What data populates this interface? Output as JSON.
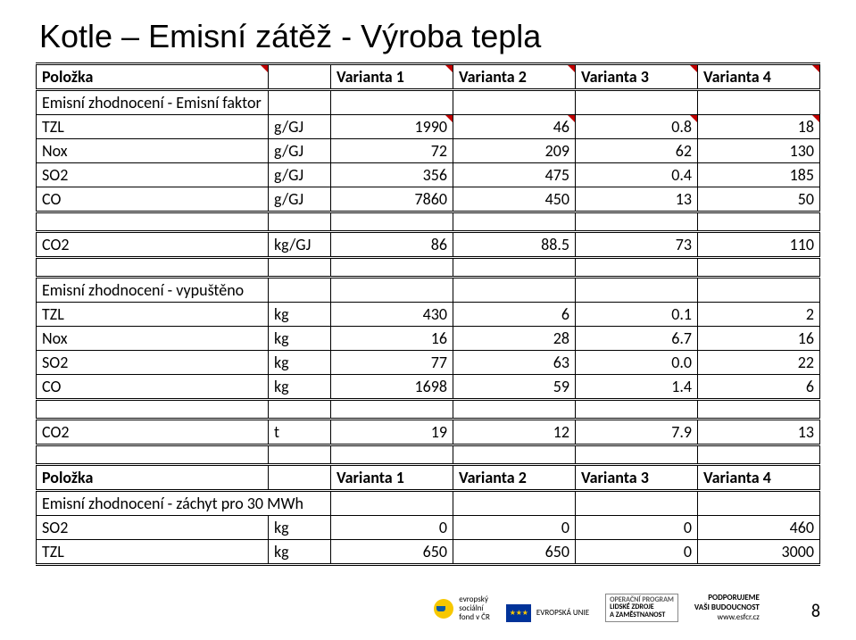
{
  "title": "Kotle – Emisní zátěž - Výroba tepla",
  "header": {
    "polozka": "Položka",
    "v1": "Varianta 1",
    "v2": "Varianta 2",
    "v3": "Varianta 3",
    "v4": "Varianta 4"
  },
  "section1": {
    "label": "Emisní zhodnocení - Emisní faktor",
    "rows": [
      {
        "name": "TZL",
        "unit": "g/GJ",
        "v1": "1990",
        "v2": "46",
        "v3": "0.8",
        "v4": "18"
      },
      {
        "name": "Nox",
        "unit": "g/GJ",
        "v1": "72",
        "v2": "209",
        "v3": "62",
        "v4": "130"
      },
      {
        "name": "SO2",
        "unit": "g/GJ",
        "v1": "356",
        "v2": "475",
        "v3": "0.4",
        "v4": "185"
      },
      {
        "name": "CO",
        "unit": "g/GJ",
        "v1": "7860",
        "v2": "450",
        "v3": "13",
        "v4": "50"
      }
    ],
    "co2": {
      "name": "CO2",
      "unit": "kg/GJ",
      "v1": "86",
      "v2": "88.5",
      "v3": "73",
      "v4": "110"
    }
  },
  "section2": {
    "label": "Emisní zhodnocení - vypuštěno",
    "rows": [
      {
        "name": "TZL",
        "unit": "kg",
        "v1": "430",
        "v2": "6",
        "v3": "0.1",
        "v4": "2"
      },
      {
        "name": "Nox",
        "unit": "kg",
        "v1": "16",
        "v2": "28",
        "v3": "6.7",
        "v4": "16"
      },
      {
        "name": "SO2",
        "unit": "kg",
        "v1": "77",
        "v2": "63",
        "v3": "0.0",
        "v4": "22"
      },
      {
        "name": "CO",
        "unit": "kg",
        "v1": "1698",
        "v2": "59",
        "v3": "1.4",
        "v4": "6"
      }
    ],
    "co2": {
      "name": "CO2",
      "unit": "t",
      "v1": "19",
      "v2": "12",
      "v3": "7.9",
      "v4": "13"
    }
  },
  "section3": {
    "label": "Emisní zhodnocení - záchyt pro 30 MWh",
    "rows": [
      {
        "name": "SO2",
        "unit": "kg",
        "v1": "0",
        "v2": "0",
        "v3": "0",
        "v4": "460"
      },
      {
        "name": "TZL",
        "unit": "kg",
        "v1": "650",
        "v2": "650",
        "v3": "0",
        "v4": "3000"
      }
    ]
  },
  "footer": {
    "esf_lines": [
      "evropský",
      "sociální",
      "fond v ČR"
    ],
    "eu_label": "EVROPSKÁ UNIE",
    "op_title": "OPERAČNÍ PROGRAM",
    "op_sub1": "LIDSKÉ ZDROJE",
    "op_sub2": "A ZAMĚSTNANOST",
    "support": "PODPORUJEME",
    "support2": "VAŠI BUDOUCNOST",
    "url": "www.esfcr.cz",
    "page": "8"
  }
}
